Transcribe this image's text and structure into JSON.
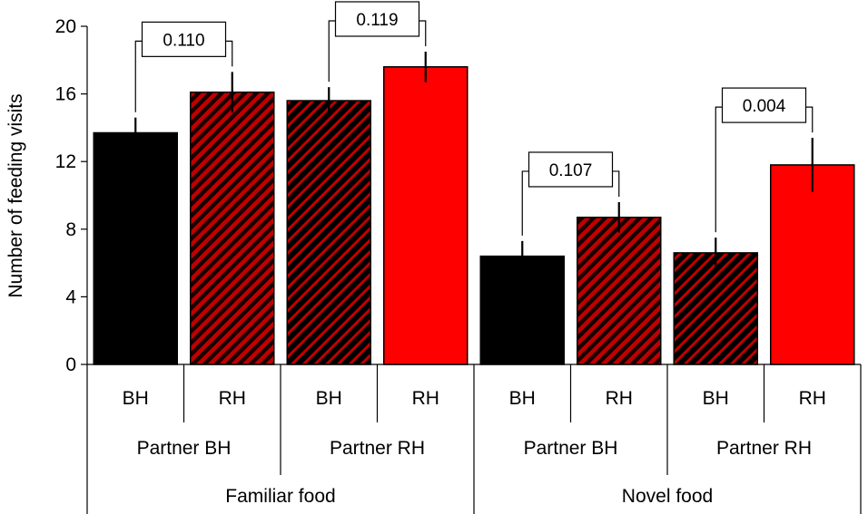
{
  "chart_data": {
    "type": "bar",
    "ylabel": "Number of feeding visits",
    "ylim": [
      0,
      20
    ],
    "yticks": [
      0,
      4,
      8,
      12,
      16,
      20
    ],
    "grid": false,
    "bars": [
      {
        "food": "Familiar food",
        "partner": "Partner BH",
        "self": "BH",
        "value": 13.7,
        "error": 0.9,
        "style": "solid-black"
      },
      {
        "food": "Familiar food",
        "partner": "Partner BH",
        "self": "RH",
        "value": 16.1,
        "error": 1.2,
        "style": "hatched-red"
      },
      {
        "food": "Familiar food",
        "partner": "Partner RH",
        "self": "BH",
        "value": 15.6,
        "error": 0.8,
        "style": "hatched-black"
      },
      {
        "food": "Familiar food",
        "partner": "Partner RH",
        "self": "RH",
        "value": 17.6,
        "error": 0.9,
        "style": "solid-red"
      },
      {
        "food": "Novel food",
        "partner": "Partner BH",
        "self": "BH",
        "value": 6.4,
        "error": 0.9,
        "style": "solid-black"
      },
      {
        "food": "Novel food",
        "partner": "Partner BH",
        "self": "RH",
        "value": 8.7,
        "error": 0.9,
        "style": "hatched-red"
      },
      {
        "food": "Novel food",
        "partner": "Partner RH",
        "self": "BH",
        "value": 6.6,
        "error": 0.9,
        "style": "hatched-black"
      },
      {
        "food": "Novel food",
        "partner": "Partner RH",
        "self": "RH",
        "value": 11.8,
        "error": 1.6,
        "style": "solid-red"
      }
    ],
    "level2_labels": [
      "Partner BH",
      "Partner RH",
      "Partner BH",
      "Partner RH"
    ],
    "level3_labels": [
      "Familiar food",
      "Novel food"
    ],
    "comparisons": [
      {
        "bars": [
          0,
          1
        ],
        "p": "0.110"
      },
      {
        "bars": [
          2,
          3
        ],
        "p": "0.119"
      },
      {
        "bars": [
          4,
          5
        ],
        "p": "0.107"
      },
      {
        "bars": [
          6,
          7
        ],
        "p": "0.004"
      }
    ],
    "colors": {
      "black": "#000000",
      "red": "#ff0000",
      "hatch_red_bg": "#c00000"
    }
  }
}
